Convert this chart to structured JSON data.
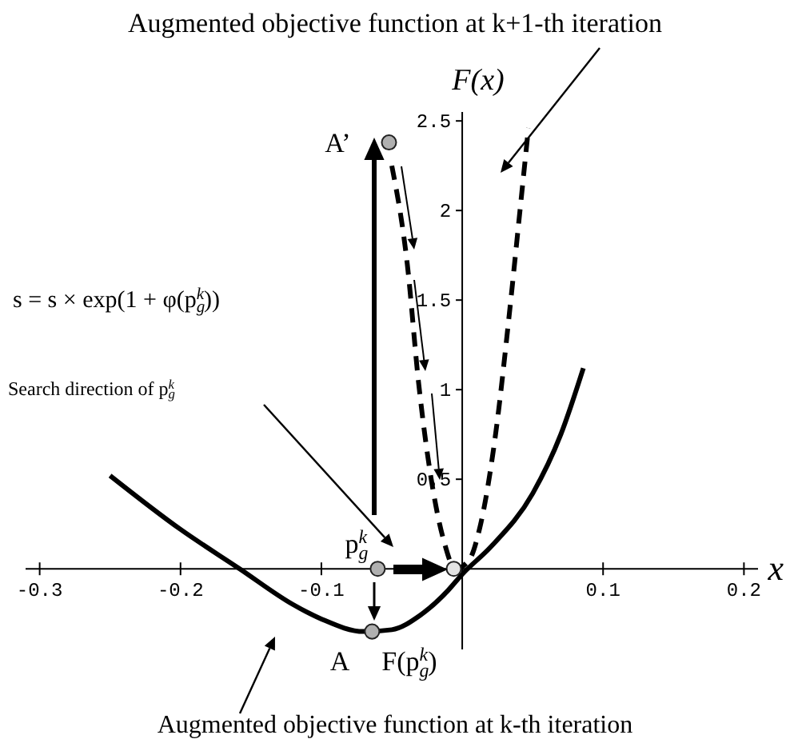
{
  "chart_data": {
    "type": "line",
    "title": "Augmented objective function at k+1-th iteration",
    "xlabel": "x",
    "ylabel": "F(x)",
    "xlim": [
      -0.31,
      0.21
    ],
    "ylim": [
      -0.45,
      2.55
    ],
    "xticks": [
      -0.3,
      -0.2,
      -0.1,
      0.1,
      0.2
    ],
    "yticks": [
      0.5,
      1,
      1.5,
      2,
      2.5
    ],
    "grid": false,
    "series": [
      {
        "color": "#000000",
        "line_style": "solid",
        "marker": "none",
        "x": [
          -0.25,
          -0.2,
          -0.158,
          -0.12,
          -0.1,
          -0.07,
          -0.05,
          -0.03,
          -0.01,
          0,
          0.02,
          0.05,
          0.07,
          0.086
        ],
        "values": [
          0.52,
          0.22,
          0,
          -0.2,
          -0.28,
          -0.35,
          -0.34,
          -0.26,
          -0.12,
          -0.03,
          0.12,
          0.42,
          0.75,
          1.12
        ]
      },
      {
        "color": "#000000",
        "line_style": "dashed",
        "marker": "none",
        "x": [
          -0.05,
          -0.039,
          -0.031,
          -0.022,
          -0.0125,
          -0.005,
          0.005,
          0.0125,
          0.024,
          0.033,
          0.041,
          0.047
        ],
        "values": [
          2.25,
          1.7,
          1.04,
          0.5,
          0.14,
          0,
          0.05,
          0.23,
          0.77,
          1.39,
          2,
          2.46
        ]
      },
      {
        "type": "scatter",
        "marker": "circle",
        "colors": [
          "#b0b0b0",
          "#b0b0b0",
          "#b0b0b0",
          "#e4e4e4"
        ],
        "x": [
          -0.052,
          -0.06,
          -0.064,
          -0.006
        ],
        "values": [
          2.38,
          0,
          -0.35,
          0
        ]
      }
    ],
    "annotations": [
      {
        "text": "A’",
        "x": -0.052,
        "y": 2.38
      },
      {
        "text": "p$_{g}$$^{k}$",
        "x": -0.06,
        "y": 0
      },
      {
        "text": "A",
        "x": -0.064,
        "y": -0.35
      },
      {
        "text": "F(p$_{g}$$^{k}$)",
        "x": -0.064,
        "y": -0.35
      },
      "s = s × exp(1 + φ(p$_{g}$$^{k}$))",
      "Search direction of p$_{g}$$^{k}$",
      "Augmented objective function at k-th iteration"
    ]
  }
}
